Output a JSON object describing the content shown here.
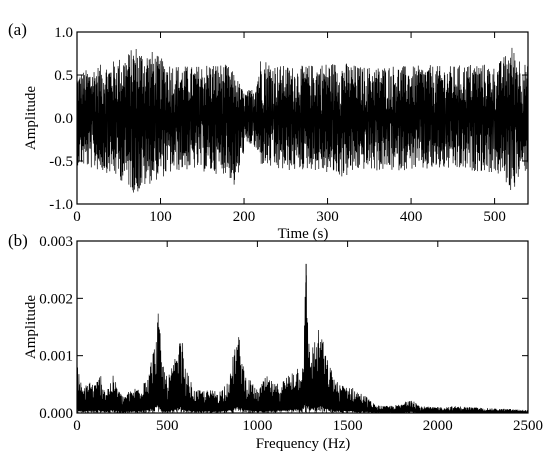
{
  "chart_data": [
    {
      "panel_label": "(a)",
      "type": "line",
      "title": "",
      "xlabel": "Time (s)",
      "ylabel": "Amplitude",
      "xlim": [
        0,
        540
      ],
      "ylim": [
        -1.0,
        1.0
      ],
      "x_ticks": [
        0,
        100,
        200,
        300,
        400,
        500
      ],
      "y_ticks": [
        -1.0,
        -0.5,
        0.0,
        0.5,
        1.0
      ],
      "x_tick_labels": [
        "0",
        "100",
        "200",
        "300",
        "400",
        "500"
      ],
      "y_tick_labels": [
        "-1.0",
        "-0.5",
        "0.0",
        "0.5",
        "1.0"
      ],
      "grid": false,
      "series": [
        {
          "color": "#000000",
          "envelope_x": [
            0,
            20,
            40,
            60,
            70,
            80,
            90,
            100,
            120,
            140,
            160,
            180,
            190,
            200,
            210,
            220,
            240,
            260,
            280,
            300,
            320,
            340,
            360,
            380,
            400,
            420,
            440,
            460,
            480,
            500,
            510,
            520,
            530,
            540
          ],
          "upper": [
            0.52,
            0.6,
            0.65,
            0.75,
            0.85,
            0.78,
            0.78,
            0.7,
            0.62,
            0.6,
            0.65,
            0.62,
            0.5,
            0.3,
            0.35,
            0.72,
            0.62,
            0.6,
            0.62,
            0.65,
            0.65,
            0.6,
            0.6,
            0.62,
            0.6,
            0.62,
            0.6,
            0.62,
            0.65,
            0.6,
            0.7,
            0.85,
            0.72,
            0.6
          ],
          "lower": [
            -0.55,
            -0.6,
            -0.65,
            -0.78,
            -0.9,
            -0.82,
            -0.75,
            -0.7,
            -0.62,
            -0.6,
            -0.65,
            -0.65,
            -0.85,
            -0.4,
            -0.3,
            -0.55,
            -0.62,
            -0.62,
            -0.6,
            -0.65,
            -0.7,
            -0.6,
            -0.62,
            -0.62,
            -0.6,
            -0.62,
            -0.6,
            -0.62,
            -0.62,
            -0.65,
            -0.7,
            -0.88,
            -0.7,
            -0.6
          ]
        }
      ]
    },
    {
      "panel_label": "(b)",
      "type": "line",
      "title": "",
      "xlabel": "Frequency (Hz)",
      "ylabel": "Amplitude",
      "xlim": [
        0,
        2500
      ],
      "ylim": [
        0.0,
        0.003
      ],
      "x_ticks": [
        0,
        500,
        1000,
        1500,
        2000,
        2500
      ],
      "y_ticks": [
        0.0,
        0.001,
        0.002,
        0.003
      ],
      "x_tick_labels": [
        "0",
        "500",
        "1000",
        "1500",
        "2000",
        "2500"
      ],
      "y_tick_labels": [
        "0.000",
        "0.001",
        "0.002",
        "0.003"
      ],
      "grid": false,
      "series": [
        {
          "color": "#000000",
          "envelope_x": [
            0,
            30,
            60,
            100,
            130,
            160,
            200,
            250,
            300,
            350,
            400,
            430,
            450,
            470,
            500,
            550,
            580,
            600,
            650,
            700,
            750,
            800,
            850,
            880,
            900,
            930,
            1000,
            1050,
            1100,
            1150,
            1200,
            1250,
            1270,
            1290,
            1320,
            1350,
            1380,
            1420,
            1450,
            1500,
            1550,
            1600,
            1650,
            1700,
            1800,
            1850,
            1900,
            2000,
            2100,
            2200,
            2300,
            2400,
            2500
          ],
          "upper": [
            0.0009,
            0.0004,
            0.0006,
            0.0005,
            0.0007,
            0.0004,
            0.00065,
            0.0003,
            0.0004,
            0.0005,
            0.0008,
            0.0012,
            0.00185,
            0.001,
            0.0006,
            0.001,
            0.0014,
            0.0008,
            0.0004,
            0.0004,
            0.0004,
            0.0004,
            0.0007,
            0.0013,
            0.00135,
            0.0007,
            0.0004,
            0.00065,
            0.0005,
            0.0006,
            0.0008,
            0.0009,
            0.0026,
            0.0011,
            0.0013,
            0.00155,
            0.001,
            0.0007,
            0.0005,
            0.0005,
            0.0004,
            0.0003,
            0.00015,
            0.00012,
            0.00015,
            0.0003,
            0.00012,
            0.0001,
            0.00012,
            0.0001,
            8e-05,
            7e-05,
            5e-05
          ]
        }
      ]
    }
  ]
}
